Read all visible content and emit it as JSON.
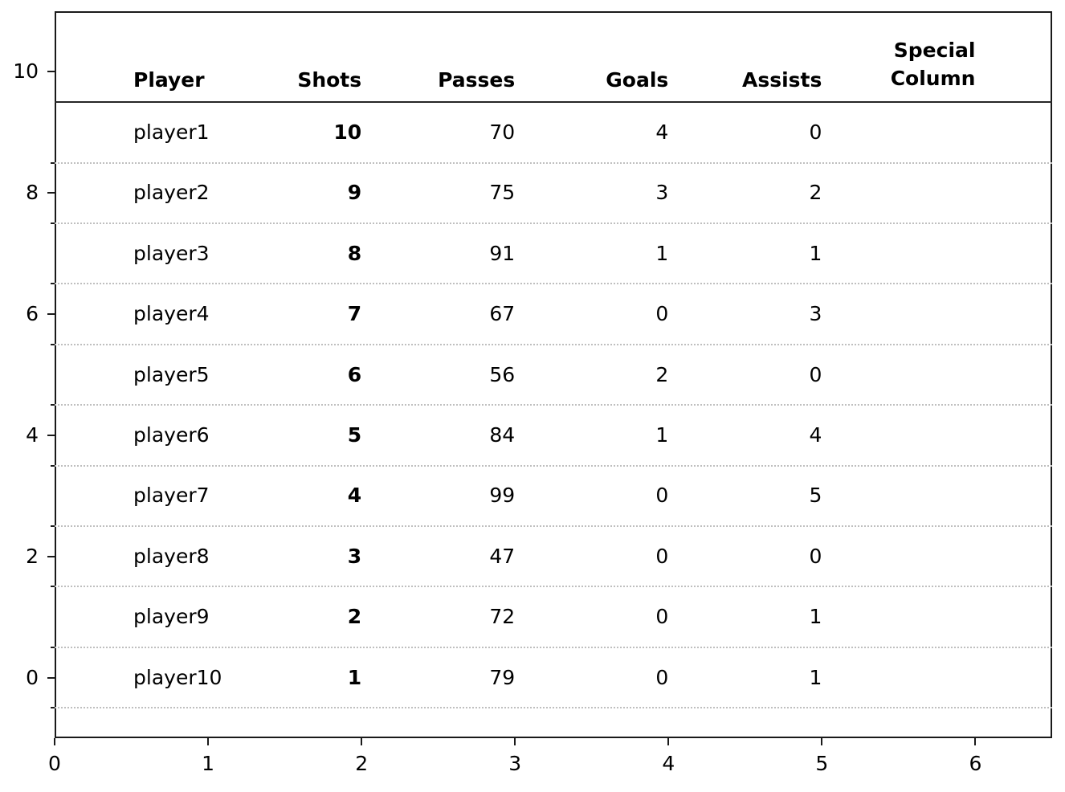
{
  "figure": {
    "background": "#ffffff",
    "frame_color": "#1a1a1a",
    "grid_color": "#bfbfbf",
    "header_line_color": "#262626",
    "text_color": "#000000"
  },
  "chart_data": {
    "type": "table",
    "title": "",
    "columns": [
      "Player",
      "Shots",
      "Passes",
      "Goals",
      "Assists",
      "Special\nColumn"
    ],
    "column_keys": [
      "player",
      "shots",
      "passes",
      "goals",
      "assists",
      "special"
    ],
    "bold_columns": [
      "shots"
    ],
    "rows": [
      {
        "player": "player1",
        "shots": "10",
        "passes": "70",
        "goals": "4",
        "assists": "0",
        "special": ""
      },
      {
        "player": "player2",
        "shots": "9",
        "passes": "75",
        "goals": "3",
        "assists": "2",
        "special": ""
      },
      {
        "player": "player3",
        "shots": "8",
        "passes": "91",
        "goals": "1",
        "assists": "1",
        "special": ""
      },
      {
        "player": "player4",
        "shots": "7",
        "passes": "67",
        "goals": "0",
        "assists": "3",
        "special": ""
      },
      {
        "player": "player5",
        "shots": "6",
        "passes": "56",
        "goals": "2",
        "assists": "0",
        "special": ""
      },
      {
        "player": "player6",
        "shots": "5",
        "passes": "84",
        "goals": "1",
        "assists": "4",
        "special": ""
      },
      {
        "player": "player7",
        "shots": "4",
        "passes": "99",
        "goals": "0",
        "assists": "5",
        "special": ""
      },
      {
        "player": "player8",
        "shots": "3",
        "passes": "47",
        "goals": "0",
        "assists": "0",
        "special": ""
      },
      {
        "player": "player9",
        "shots": "2",
        "passes": "72",
        "goals": "0",
        "assists": "1",
        "special": ""
      },
      {
        "player": "player10",
        "shots": "1",
        "passes": "79",
        "goals": "0",
        "assists": "1",
        "special": ""
      }
    ],
    "row_y_values": [
      9,
      8,
      7,
      6,
      5,
      4,
      3,
      2,
      1,
      0
    ],
    "x_axis": {
      "tick_labels": [
        "0",
        "1",
        "2",
        "3",
        "4",
        "5",
        "6"
      ],
      "tick_values": [
        0,
        1,
        2,
        3,
        4,
        5,
        6
      ],
      "range": [
        0,
        6.5
      ]
    },
    "y_axis": {
      "tick_labels": [
        "10",
        "8",
        "6",
        "4",
        "2",
        "0"
      ],
      "tick_values": [
        10,
        8,
        6,
        4,
        2,
        0
      ],
      "minor_tick_values": [
        8.5,
        7.5,
        6.5,
        5.5,
        4.5,
        3.5,
        2.5,
        1.5,
        0.5,
        -0.5
      ],
      "range": [
        -1,
        11
      ]
    },
    "grid": {
      "dotted_row_lines_at": [
        8.5,
        7.5,
        6.5,
        5.5,
        4.5,
        3.5,
        2.5,
        1.5,
        0.5,
        -0.5
      ],
      "solid_header_line_at": 9.5,
      "legend": "none",
      "grid_direction": "horizontal"
    }
  }
}
